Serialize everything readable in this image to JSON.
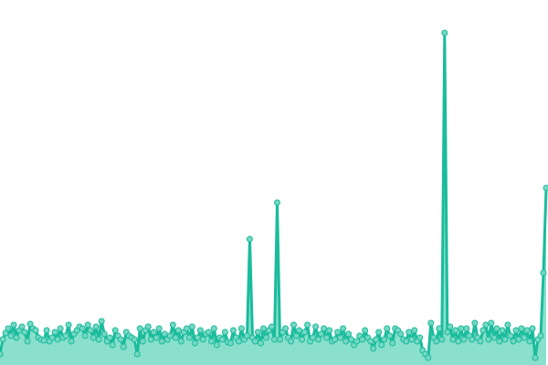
{
  "chart_data": {
    "type": "area",
    "title": "",
    "xlabel": "",
    "ylabel": "",
    "axes_visible": false,
    "grid": false,
    "legend": "none",
    "ylim": [
      0,
      400
    ],
    "colors": {
      "line": "#1abc9c",
      "area": "#8ae0cc",
      "point_fill": "#76d7c4",
      "point_stroke": "#1abc9c"
    },
    "values": [
      12,
      28,
      35,
      40,
      32,
      44,
      30,
      38,
      42,
      36,
      26,
      45,
      40,
      38,
      30,
      28,
      27,
      38,
      26,
      30,
      36,
      28,
      40,
      30,
      32,
      44,
      26,
      34,
      38,
      42,
      40,
      32,
      44,
      38,
      30,
      42,
      28,
      48,
      34,
      26,
      30,
      22,
      38,
      32,
      28,
      20,
      36,
      32,
      30,
      28,
      12,
      40,
      26,
      38,
      42,
      28,
      36,
      30,
      40,
      26,
      34,
      28,
      32,
      44,
      30,
      38,
      26,
      36,
      40,
      30,
      42,
      24,
      30,
      38,
      28,
      34,
      36,
      26,
      40,
      22,
      30,
      28,
      36,
      25,
      24,
      38,
      30,
      26,
      40,
      28,
      32,
      138,
      30,
      26,
      36,
      24,
      40,
      30,
      38,
      42,
      28,
      178,
      28,
      36,
      40,
      30,
      26,
      44,
      32,
      38,
      28,
      36,
      44,
      26,
      30,
      42,
      28,
      34,
      40,
      30,
      38,
      26,
      28,
      36,
      30,
      40,
      26,
      34,
      28,
      22,
      26,
      32,
      28,
      38,
      30,
      26,
      18,
      28,
      36,
      22,
      28,
      40,
      32,
      24,
      40,
      38,
      34,
      28,
      26,
      36,
      28,
      38,
      26,
      30,
      16,
      12,
      8,
      46,
      30,
      26,
      40,
      28,
      364,
      36,
      42,
      28,
      38,
      26,
      40,
      28,
      40,
      32,
      28,
      46,
      30,
      26,
      38,
      44,
      28,
      46,
      30,
      40,
      26,
      38,
      28,
      44,
      32,
      26,
      38,
      28,
      40,
      30,
      38,
      26,
      40,
      8,
      28,
      32,
      101,
      194
    ]
  }
}
